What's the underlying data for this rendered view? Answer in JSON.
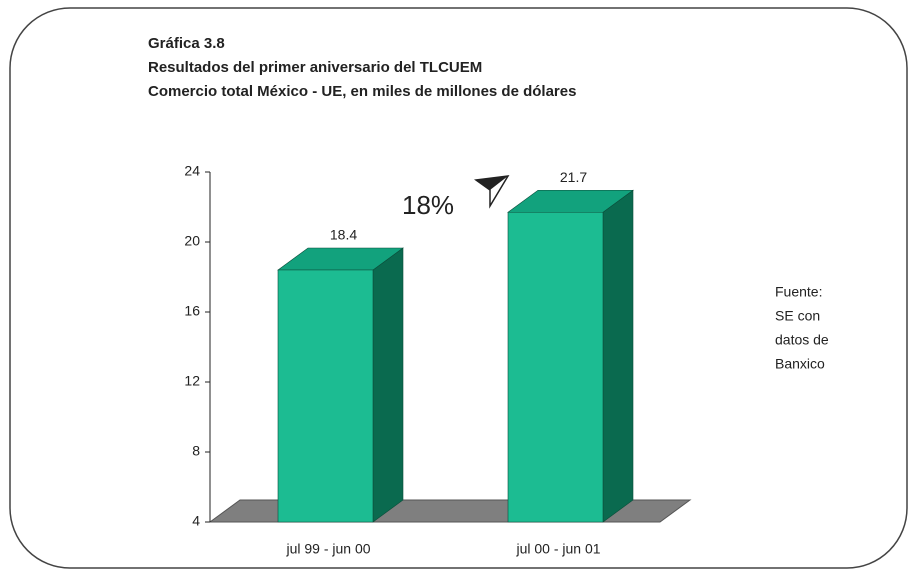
{
  "chart_data": {
    "type": "bar3d",
    "title": "Gráfica 3.8",
    "subtitle": [
      "Resultados del primer aniversario del TLCUEM",
      "Comercio total México - UE, en miles de millones de dólares"
    ],
    "categories": [
      "jul 99 - jun 00",
      "jul 00 - jun 01"
    ],
    "values": [
      18.4,
      21.7
    ],
    "color": "#1cbc92",
    "ylim": [
      4,
      24
    ],
    "yticks": [
      4,
      8,
      12,
      16,
      20,
      24
    ],
    "annotation": "18%",
    "source": [
      "Fuente:",
      "SE con",
      "datos de",
      "Banxico"
    ]
  }
}
